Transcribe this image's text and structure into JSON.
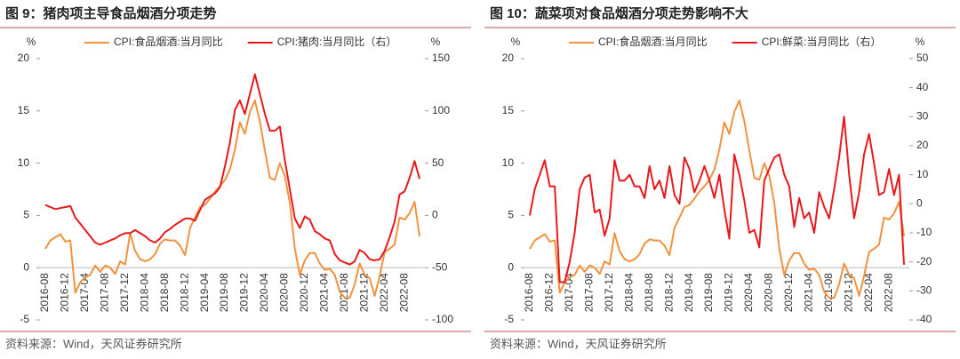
{
  "chart_data": [
    {
      "type": "line",
      "title": "图 9：猪肉项主导食品烟酒分项走势",
      "source": "资料来源：Wind，天风证券研究所",
      "ylabel": "%",
      "y2label": "%",
      "categories": [
        "2016-08",
        null,
        null,
        null,
        "2016-12",
        null,
        null,
        null,
        "2017-04",
        null,
        null,
        null,
        "2017-08",
        null,
        null,
        null,
        "2017-12",
        null,
        null,
        null,
        "2018-04",
        null,
        null,
        null,
        "2018-08",
        null,
        null,
        null,
        "2018-12",
        null,
        null,
        null,
        "2019-04",
        null,
        null,
        null,
        "2019-08",
        null,
        null,
        null,
        "2019-12",
        null,
        null,
        null,
        "2020-04",
        null,
        null,
        null,
        "2020-08",
        null,
        null,
        null,
        "2020-12",
        null,
        null,
        null,
        "2021-04",
        null,
        null,
        null,
        "2021-08",
        null,
        null,
        null,
        "2021-12",
        null,
        null,
        null,
        "2022-04",
        null,
        null,
        null,
        "2022-08",
        null,
        null,
        null
      ],
      "series": [
        {
          "name": "CPI:食品烟酒:当月同比",
          "color": "#f0923f",
          "values": [
            1.8,
            2.6,
            2.9,
            3.2,
            2.5,
            2.6,
            -2.4,
            -1.4,
            -0.9,
            -0.7,
            0.2,
            -0.4,
            0.2,
            0.0,
            -0.6,
            0.6,
            0.3,
            3.3,
            1.6,
            0.8,
            0.6,
            0.8,
            1.3,
            2.3,
            2.7,
            2.6,
            2.6,
            2.1,
            1.2,
            3.8,
            4.8,
            5.8,
            6.0,
            6.6,
            7.3,
            7.8,
            8.4,
            9.4,
            11.3,
            13.9,
            12.8,
            14.9,
            16.0,
            14.0,
            11.2,
            8.6,
            8.4,
            10.0,
            8.8,
            6.2,
            1.8,
            -0.7,
            0.7,
            1.4,
            1.4,
            0.4,
            -0.2,
            -0.1,
            -0.7,
            -2.3,
            -2.9,
            -2.9,
            -1.6,
            0.4,
            -0.7,
            -1.0,
            -2.7,
            -0.8,
            1.5,
            1.8,
            2.2,
            4.8,
            4.6,
            5.2,
            6.3,
            3.0
          ]
        },
        {
          "name": "CPI:猪肉:当月同比（右）",
          "color": "#e8191c",
          "axis": "y2",
          "values": [
            10,
            8,
            6,
            7,
            8,
            9,
            -2,
            -8,
            -14,
            -20,
            -26,
            -28,
            -26,
            -24,
            -22,
            -19,
            -17,
            -17,
            -14,
            -17,
            -20,
            -24,
            -26,
            -22,
            -16,
            -13,
            -9,
            -6,
            -3,
            -3,
            -5,
            5,
            15,
            18,
            21,
            27,
            47,
            70,
            101,
            110,
            97,
            116,
            135,
            116,
            97,
            81,
            81,
            85,
            53,
            25,
            -3,
            -12,
            -1,
            -4,
            -15,
            -18,
            -22,
            -24,
            -37,
            -43,
            -45,
            -47,
            -44,
            -33,
            -36,
            -42,
            -43,
            -42,
            -34,
            -21,
            -6,
            20,
            23,
            36,
            52,
            35
          ]
        }
      ],
      "ylim": [
        -5,
        20
      ],
      "yticks": [
        -5,
        0,
        5,
        10,
        15,
        20
      ],
      "y2lim": [
        -100,
        150
      ],
      "y2ticks": [
        -100,
        -50,
        0,
        50,
        100,
        150
      ]
    },
    {
      "type": "line",
      "title": "图 10：蔬菜项对食品烟酒分项走势影响不大",
      "source": "资料来源：Wind，天风证券研究所",
      "ylabel": "%",
      "y2label": "%",
      "categories": [
        "2016-08",
        null,
        null,
        null,
        "2016-12",
        null,
        null,
        null,
        "2017-04",
        null,
        null,
        null,
        "2017-08",
        null,
        null,
        null,
        "2017-12",
        null,
        null,
        null,
        "2018-04",
        null,
        null,
        null,
        "2018-08",
        null,
        null,
        null,
        "2018-12",
        null,
        null,
        null,
        "2019-04",
        null,
        null,
        null,
        "2019-08",
        null,
        null,
        null,
        "2019-12",
        null,
        null,
        null,
        "2020-04",
        null,
        null,
        null,
        "2020-08",
        null,
        null,
        null,
        "2020-12",
        null,
        null,
        null,
        "2021-04",
        null,
        null,
        null,
        "2021-08",
        null,
        null,
        null,
        "2021-12",
        null,
        null,
        null,
        "2022-04",
        null,
        null,
        null,
        "2022-08",
        null,
        null,
        null
      ],
      "series": [
        {
          "name": "CPI:食品烟酒:当月同比",
          "color": "#f0923f",
          "values": [
            1.8,
            2.6,
            2.9,
            3.2,
            2.5,
            2.6,
            -2.4,
            -1.4,
            -0.9,
            -0.7,
            0.2,
            -0.4,
            0.2,
            0.0,
            -0.6,
            0.6,
            0.3,
            3.3,
            1.6,
            0.8,
            0.6,
            0.8,
            1.3,
            2.3,
            2.7,
            2.6,
            2.6,
            2.1,
            1.2,
            3.8,
            4.8,
            5.8,
            6.0,
            6.6,
            7.3,
            7.8,
            8.4,
            9.4,
            11.3,
            13.9,
            12.8,
            14.9,
            16.0,
            14.0,
            11.2,
            8.6,
            8.4,
            10.0,
            8.8,
            6.2,
            1.8,
            -0.7,
            0.7,
            1.4,
            1.4,
            0.4,
            -0.2,
            -0.1,
            -0.7,
            -2.3,
            -2.9,
            -2.9,
            -1.6,
            0.4,
            -0.7,
            -1.0,
            -2.7,
            -0.8,
            1.5,
            1.8,
            2.2,
            4.8,
            4.6,
            5.2,
            6.3,
            3.0
          ]
        },
        {
          "name": "CPI:鲜菜:当月同比（右）",
          "color": "#e8191c",
          "axis": "y2",
          "values": [
            -4,
            5,
            10,
            15,
            6,
            6,
            -27,
            -27,
            -20,
            -10,
            5,
            9,
            10,
            -3,
            -2,
            -11,
            -5,
            15,
            8,
            8,
            10,
            6,
            6,
            2,
            13,
            5,
            8,
            2,
            13,
            3,
            0,
            16,
            12,
            4,
            8,
            13,
            8,
            2,
            10,
            -2,
            -12,
            17,
            10,
            1,
            -10,
            -9,
            -15,
            8,
            12,
            16,
            17,
            10,
            6,
            -8,
            2,
            -5,
            -3,
            -10,
            4,
            -1,
            -5,
            5,
            16,
            30,
            10,
            -5,
            4,
            17,
            24,
            14,
            3,
            4,
            12,
            3,
            10,
            -21
          ]
        }
      ],
      "ylim": [
        -5,
        20
      ],
      "yticks": [
        -5,
        0,
        5,
        10,
        15,
        20
      ],
      "y2lim": [
        -40,
        50
      ],
      "y2ticks": [
        -40,
        -30,
        -20,
        -10,
        0,
        10,
        20,
        30,
        40,
        50
      ]
    }
  ]
}
